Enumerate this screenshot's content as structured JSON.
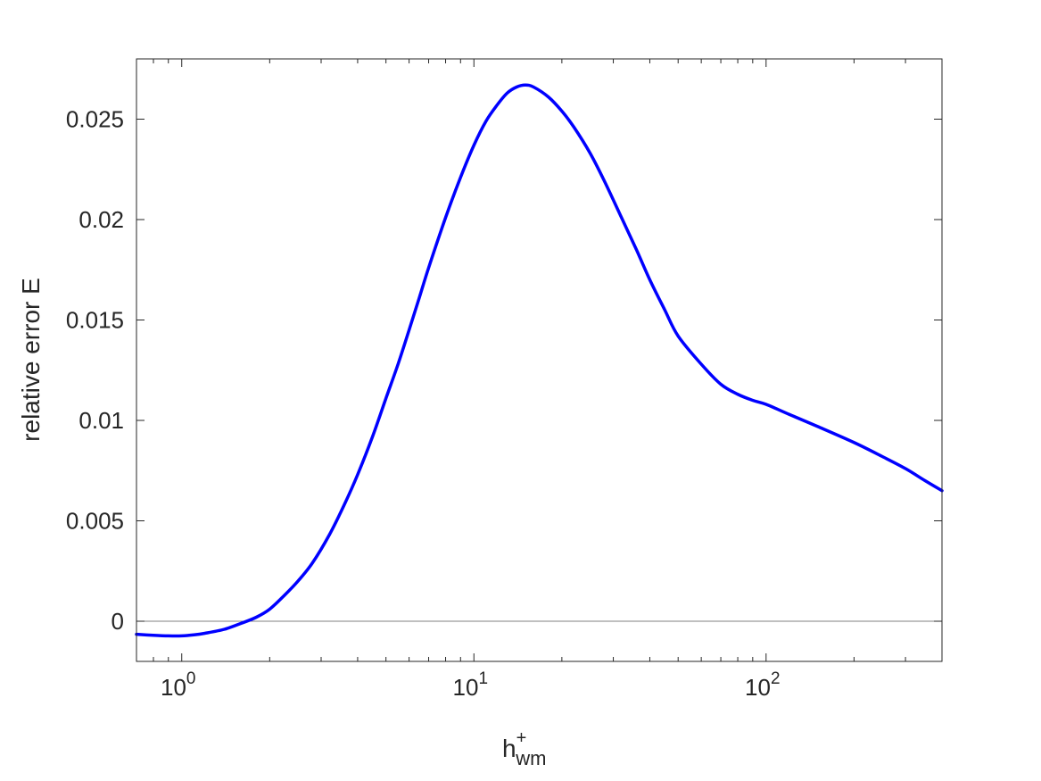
{
  "chart_data": {
    "type": "line",
    "title": "",
    "xlabel": {
      "base": "h",
      "superscript": "+",
      "subscript": "wm"
    },
    "ylabel": "relative error E",
    "xscale": "log",
    "xlim": [
      0.7,
      400
    ],
    "ylim": [
      -0.002,
      0.028
    ],
    "grid": false,
    "box": true,
    "reference_line": {
      "y": 0,
      "color": "#808080"
    },
    "xticks": [
      {
        "value": 1,
        "base": "10",
        "exp": "0"
      },
      {
        "value": 10,
        "base": "10",
        "exp": "1"
      },
      {
        "value": 100,
        "base": "10",
        "exp": "2"
      }
    ],
    "yticks": [
      {
        "value": 0,
        "label": "0"
      },
      {
        "value": 0.005,
        "label": "0.005"
      },
      {
        "value": 0.01,
        "label": "0.01"
      },
      {
        "value": 0.015,
        "label": "0.015"
      },
      {
        "value": 0.02,
        "label": "0.02"
      },
      {
        "value": 0.025,
        "label": "0.025"
      }
    ],
    "series": [
      {
        "color": "#0000ff",
        "x": [
          0.7,
          0.8,
          0.9,
          1.0,
          1.1,
          1.2,
          1.4,
          1.6,
          1.8,
          2.0,
          2.25,
          2.5,
          2.8,
          3.2,
          3.6,
          4.0,
          4.5,
          5.0,
          5.5,
          6.0,
          6.5,
          7.0,
          8.0,
          9.0,
          10.0,
          11.0,
          12.0,
          13.0,
          14.0,
          15.0,
          16.0,
          18.0,
          20.0,
          22.0,
          25.0,
          28.0,
          32.0,
          36.0,
          40.0,
          45.0,
          50.0,
          60.0,
          70.0,
          80.0,
          90.0,
          100.0,
          120.0,
          150.0,
          200.0,
          250.0,
          300.0,
          350.0,
          400.0
        ],
        "y": [
          -0.00065,
          -0.0007,
          -0.00073,
          -0.00073,
          -0.00068,
          -0.0006,
          -0.0004,
          -0.0001,
          0.0002,
          0.0006,
          0.0013,
          0.002,
          0.0029,
          0.0043,
          0.0058,
          0.0073,
          0.0092,
          0.0111,
          0.0128,
          0.0145,
          0.0161,
          0.0176,
          0.0201,
          0.0221,
          0.0237,
          0.0249,
          0.0257,
          0.0263,
          0.0266,
          0.0267,
          0.0266,
          0.0261,
          0.0254,
          0.0246,
          0.0233,
          0.0219,
          0.0201,
          0.0185,
          0.017,
          0.0155,
          0.0142,
          0.0128,
          0.0118,
          0.0113,
          0.011,
          0.0108,
          0.0103,
          0.0097,
          0.0089,
          0.0082,
          0.0076,
          0.007,
          0.0065
        ]
      }
    ]
  }
}
